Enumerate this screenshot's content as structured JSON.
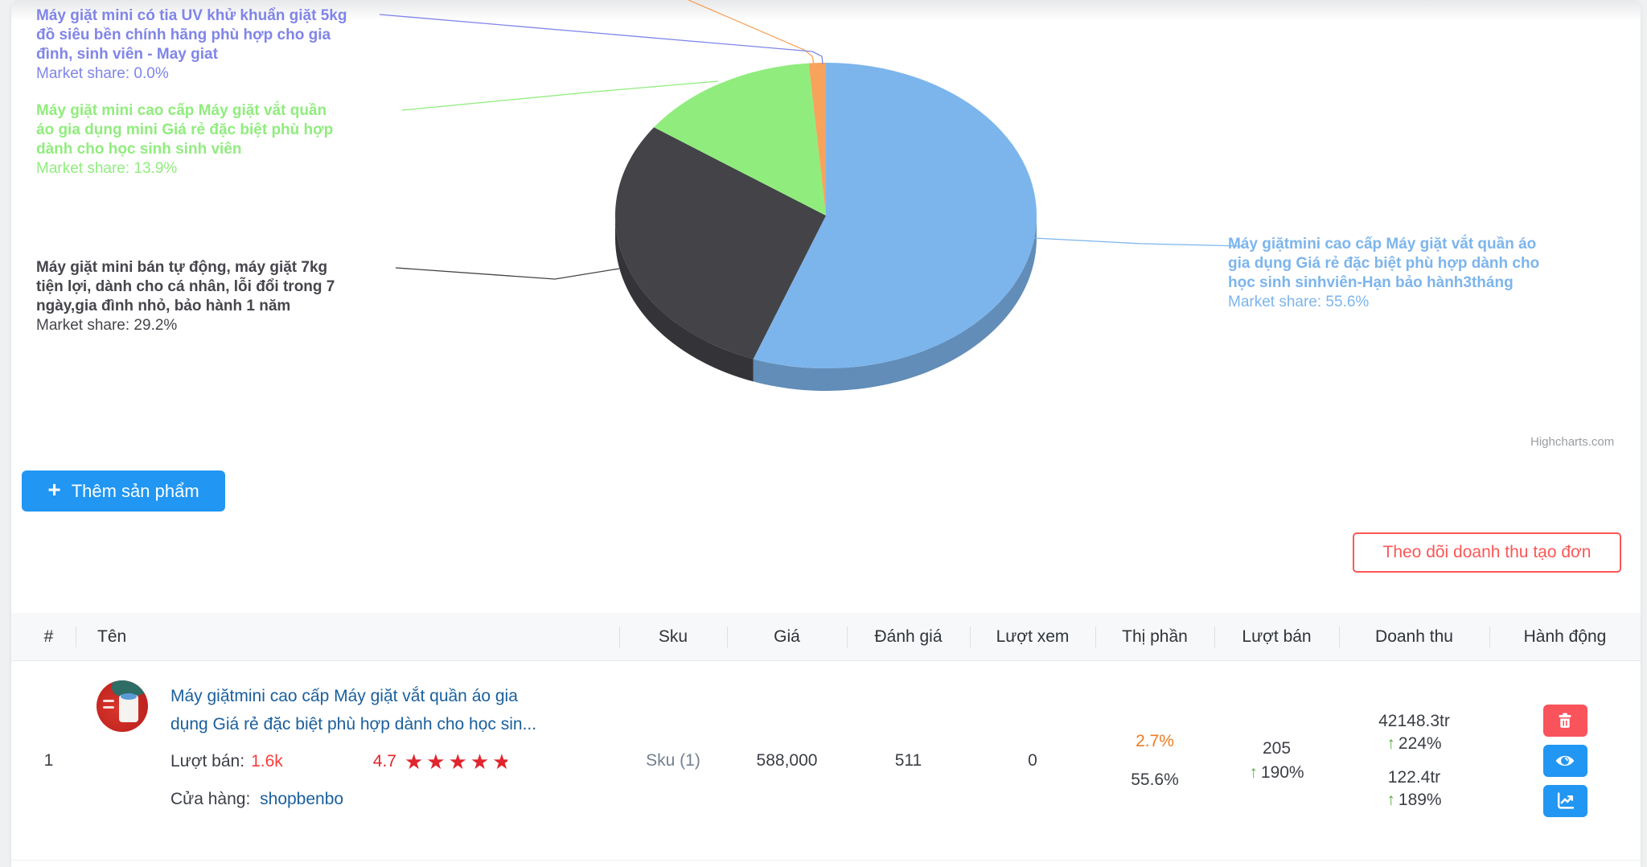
{
  "chart_data": {
    "type": "pie",
    "title": "",
    "legend_position": "none",
    "credit": "Highcharts.com",
    "slices": [
      {
        "name": "Máy giặtmini cao cấp Máy giặt vắt quần áo gia dụng Giá rẻ đặc biệt phù hợp dành cho học sinh sinhviên-Hạn bảo hành3tháng",
        "value": 55.6,
        "color": "#7cb5ec",
        "label_lines": [
          "Máy giặtmini cao cấp Máy giặt vắt quần áo",
          "gia dụng Giá rẻ đặc biệt phù hợp dành cho",
          "học sinh sinhviên-Hạn bảo hành3tháng"
        ],
        "share_text": "Market share: 55.6%"
      },
      {
        "name": "Máy giặt mini bán tự động, máy giặt 7kg tiện lợi, dành cho cá nhân, lỗi đổi trong 7 ngày,gia đình nhỏ, bảo hành 1 năm",
        "value": 29.2,
        "color": "#434348",
        "label_lines": [
          "Máy giặt mini bán tự động, máy giặt 7kg",
          "tiện lợi, dành cho cá nhân, lỗi đổi trong 7",
          "ngày,gia đình nhỏ, bảo hành 1 năm"
        ],
        "share_text": "Market share: 29.2%"
      },
      {
        "name": "Máy giặt mini cao cấp Máy giặt vắt quần áo gia dụng mini Giá rẻ đặc biệt phù hợp dành cho học sinh sinh viên",
        "value": 13.9,
        "color": "#90ed7d",
        "label_lines": [
          "Máy giặt mini cao cấp Máy giặt vắt quần",
          "áo gia dụng mini Giá rẻ đặc biệt phù hợp",
          "dành cho học sinh sinh viên"
        ],
        "share_text": "Market share: 13.9%"
      },
      {
        "name": "",
        "value": 1.3,
        "color": "#f7a35c",
        "label_lines": [],
        "share_text": ""
      },
      {
        "name": "Máy giặt mini có tia UV khử khuẩn giặt 5kg đồ siêu bền chính hãng phù hợp cho gia đình, sinh viên - May giat",
        "value": 0.0,
        "color": "#8085e9",
        "label_lines": [
          "Máy giặt mini có tia UV khử khuẩn giặt 5kg",
          "đồ siêu bền chính hãng phù hợp cho gia",
          "đình, sinh viên - May giat"
        ],
        "share_text": "Market share: 0.0%"
      }
    ]
  },
  "buttons": {
    "add_product": "Thêm sản phẩm",
    "track_revenue": "Theo dõi doanh thu tạo đơn"
  },
  "icons": {
    "plus": "+",
    "up_arrow": "↑",
    "star": "★"
  },
  "colors": {
    "accent_blue": "#2196f3",
    "danger_red": "#fb5757",
    "action_red": "#f9535b",
    "link_blue": "#1a5f9c",
    "star_red": "#e0252e",
    "share_orange": "#ee7b23",
    "growth_green": "#5aad3f"
  },
  "table": {
    "headers": [
      "#",
      "Tên",
      "Sku",
      "Giá",
      "Đánh giá",
      "Lượt xem",
      "Thị phần",
      "Lượt bán",
      "Doanh thu",
      "Hành động"
    ],
    "row": {
      "index": "1",
      "name_line1": "Máy giặtmini cao cấp Máy giặt vắt quần áo gia",
      "name_line2": "dụng Giá rẻ đặc biệt phù hợp dành cho học sin...",
      "sold_label": "Lượt bán:",
      "sold_value": "1.6k",
      "rating": "4.7",
      "store_label": "Cửa hàng:",
      "store_name": "shopbenbo",
      "sku": "Sku (1)",
      "price": "588,000",
      "review_count": "511",
      "view_count": "0",
      "share_recent": "2.7%",
      "share_total": "55.6%",
      "sold_count": "205",
      "sold_growth": "190%",
      "revenue_total": "42148.3tr",
      "revenue_total_growth": "224%",
      "revenue_recent": "122.4tr",
      "revenue_recent_growth": "189%"
    }
  }
}
